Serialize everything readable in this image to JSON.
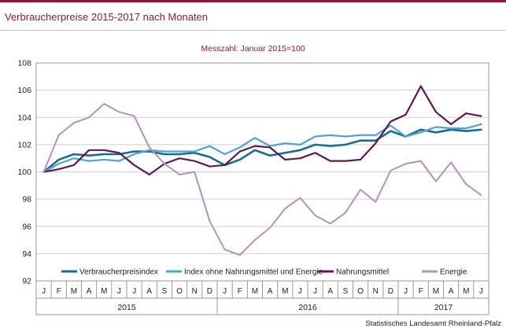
{
  "header": {
    "title": "Verbraucherpreise 2015-2017 nach Monaten",
    "subtitle": "Messzahl: Januar 2015=100"
  },
  "footer": {
    "source": "Statistisches Landesamt Rheinland-Pfalz"
  },
  "chart_data": {
    "type": "line",
    "title": "Verbraucherpreise 2015-2017 nach Monaten",
    "subtitle": "Messzahl: Januar 2015=100",
    "xlabel": "",
    "ylabel": "",
    "ylim": [
      92,
      108
    ],
    "yticks": [
      92,
      94,
      96,
      98,
      100,
      102,
      104,
      106,
      108
    ],
    "grid": true,
    "legend": "bottom-inside",
    "month_labels": [
      "J",
      "F",
      "M",
      "A",
      "M",
      "J",
      "J",
      "A",
      "S",
      "O",
      "N",
      "D",
      "J",
      "F",
      "M",
      "A",
      "M",
      "J",
      "J",
      "A",
      "S",
      "O",
      "N",
      "D",
      "J",
      "F",
      "M",
      "A",
      "M",
      "J"
    ],
    "years": [
      {
        "label": "2015",
        "start": 0,
        "end": 11
      },
      {
        "label": "2016",
        "start": 12,
        "end": 23
      },
      {
        "label": "2017",
        "start": 24,
        "end": 29
      }
    ],
    "series": [
      {
        "name": "Verbraucherpreisindex",
        "color": "#1a6a92",
        "width": 2.6,
        "values": [
          100.0,
          100.9,
          101.3,
          101.2,
          101.3,
          101.3,
          101.5,
          101.5,
          101.3,
          101.3,
          101.4,
          101.1,
          100.5,
          100.9,
          101.6,
          101.2,
          101.4,
          101.6,
          102.0,
          101.9,
          102.0,
          102.3,
          102.3,
          103.0,
          102.6,
          103.1,
          102.9,
          103.1,
          103.0,
          103.1
        ]
      },
      {
        "name": "Index ohne Nahrungsmittel und Energie",
        "color": "#4ea6cc",
        "width": 2.2,
        "values": [
          100.0,
          100.6,
          101.0,
          100.8,
          100.9,
          100.8,
          101.3,
          101.6,
          101.5,
          101.5,
          101.5,
          101.9,
          101.3,
          101.8,
          102.5,
          101.9,
          102.1,
          102.0,
          102.6,
          102.7,
          102.6,
          102.7,
          102.7,
          103.4,
          102.6,
          102.9,
          103.3,
          103.2,
          103.2,
          103.5
        ]
      },
      {
        "name": "Nahrungsmittel",
        "color": "#5c1a55",
        "width": 2.2,
        "values": [
          100.0,
          100.2,
          100.5,
          101.6,
          101.6,
          101.4,
          100.5,
          99.8,
          100.6,
          101.0,
          100.8,
          100.4,
          100.5,
          101.5,
          101.9,
          101.8,
          100.9,
          101.0,
          101.4,
          100.8,
          100.8,
          100.9,
          102.1,
          103.7,
          104.2,
          106.3,
          104.4,
          103.5,
          104.3,
          104.1
        ]
      },
      {
        "name": "Energie",
        "color": "#b492bf",
        "width": 2.0,
        "values": [
          100.0,
          102.7,
          103.6,
          104.0,
          105.0,
          104.4,
          104.1,
          101.8,
          100.6,
          99.8,
          100.0,
          96.4,
          94.3,
          93.9,
          95.0,
          95.9,
          97.3,
          98.1,
          96.8,
          96.2,
          97.0,
          98.7,
          97.8,
          100.1,
          100.6,
          100.8,
          99.3,
          100.7,
          99.1,
          98.3
        ]
      }
    ]
  }
}
